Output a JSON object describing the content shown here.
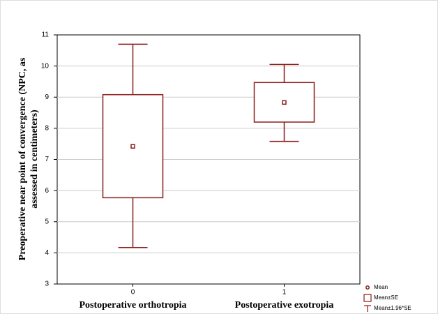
{
  "chart_data": {
    "type": "box",
    "ylabel": [
      "Preoperative near point of convergence (NPC, as",
      "assessed in centimeters)"
    ],
    "categories": [
      "0",
      "1"
    ],
    "category_names": [
      "Postoperative orthotropia",
      "Postoperative exotropia"
    ],
    "mean": [
      7.42,
      8.83
    ],
    "se_low": [
      5.77,
      8.2
    ],
    "se_high": [
      9.08,
      9.47
    ],
    "ci_low": [
      4.17,
      7.58
    ],
    "ci_high": [
      10.7,
      10.05
    ],
    "color": "#8b1a1a",
    "ylim": [
      3,
      11
    ],
    "yticks": [
      3,
      4,
      5,
      6,
      7,
      8,
      9,
      10,
      11
    ],
    "grid": true,
    "legend": [
      "Mean",
      "Mean±SE",
      "Mean±1.96*SE"
    ]
  }
}
